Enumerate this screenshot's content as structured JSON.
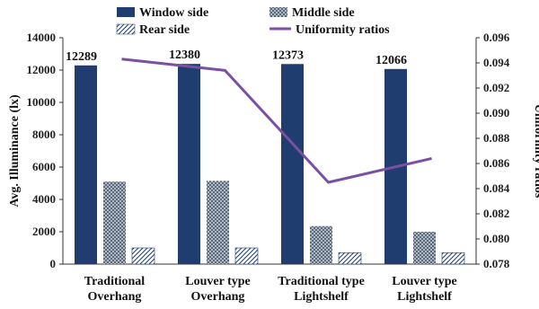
{
  "chart_data": {
    "type": "bar",
    "categories": [
      [
        "Traditional",
        "Overhang"
      ],
      [
        "Louver type",
        "Overhang"
      ],
      [
        "Traditional type",
        "Lightshelf"
      ],
      [
        "Louver type",
        "Lightshelf"
      ]
    ],
    "series": [
      {
        "name": "Window side",
        "values": [
          12289,
          12380,
          12373,
          12066
        ],
        "color": "#1f3d6e",
        "pattern": "solid"
      },
      {
        "name": "Middle side",
        "values": [
          5100,
          5150,
          2350,
          2000
        ],
        "color": "#7a8896",
        "pattern": "crosshatch"
      },
      {
        "name": "Rear side",
        "values": [
          1000,
          1000,
          700,
          700
        ],
        "color": "#1f3d6e",
        "pattern": "diagonal"
      }
    ],
    "line_series": {
      "name": "Uniformity ratios",
      "values": [
        0.0943,
        0.0934,
        0.0845,
        0.0864
      ],
      "color": "#7b4fa3",
      "axis": "right"
    },
    "data_labels": [
      "12289",
      "12380",
      "12373",
      "12066"
    ],
    "ylabel": "Avg. Illuminance (lx)",
    "ylabel_right": "Uniformity ratios",
    "ylim": [
      0,
      14000
    ],
    "yticks": [
      "0",
      "2000",
      "4000",
      "6000",
      "8000",
      "10000",
      "12000",
      "14000"
    ],
    "ylim_right": [
      0.078,
      0.096
    ],
    "yticks_right": [
      "0.078",
      "0.080",
      "0.082",
      "0.084",
      "0.086",
      "0.088",
      "0.090",
      "0.092",
      "0.094",
      "0.096"
    ],
    "legend_position": "top",
    "grid": false
  }
}
